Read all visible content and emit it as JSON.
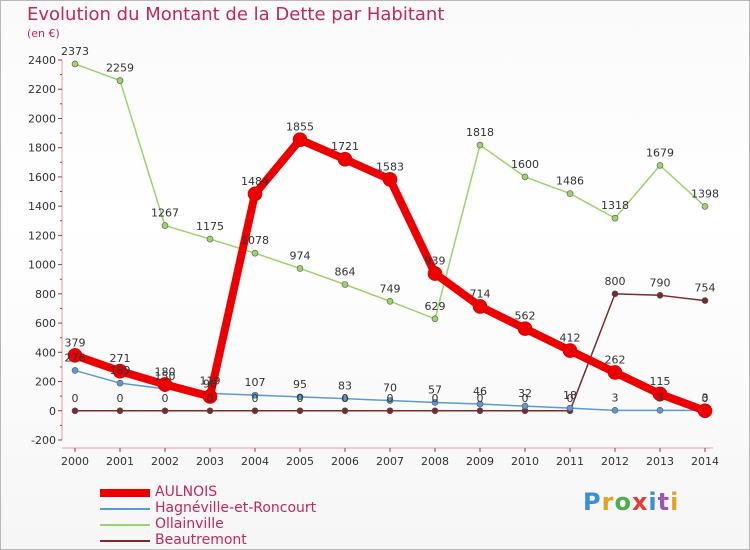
{
  "title": "Evolution du Montant de la Dette par Habitant",
  "unit_label": "(en €)",
  "logo_text": "Proxiti",
  "chart_data": {
    "type": "line",
    "title": "Evolution du Montant de la Dette par Habitant",
    "ylabel": "(en €)",
    "xlabel": "",
    "x": [
      "2000",
      "2001",
      "2002",
      "2003",
      "2004",
      "2005",
      "2006",
      "2007",
      "2008",
      "2009",
      "2010",
      "2011",
      "2012",
      "2013",
      "2014"
    ],
    "ylim": [
      -200,
      2400
    ],
    "y_ticks": [
      -200,
      0,
      200,
      400,
      600,
      800,
      1000,
      1200,
      1400,
      1600,
      1800,
      2000,
      2200,
      2400
    ],
    "grid": false,
    "legend_position": "bottom-left",
    "series": [
      {
        "name": "AULNOIS",
        "color": "#ee0000",
        "width": 8,
        "values": [
          379,
          271,
          180,
          98,
          1484,
          1855,
          1721,
          1583,
          939,
          714,
          562,
          412,
          262,
          115,
          0
        ],
        "labels": [
          "379",
          "271",
          "180",
          "98",
          "1484",
          "1855",
          "1721",
          "1583",
          "939",
          "714",
          "562",
          "412",
          "262",
          "115",
          "0"
        ]
      },
      {
        "name": "Hagnéville-et-Roncourt",
        "color": "#5b9bd5",
        "width": 1.5,
        "values": [
          276,
          189,
          150,
          119,
          107,
          95,
          83,
          70,
          57,
          46,
          32,
          18,
          3,
          3,
          3
        ],
        "labels": [
          "276",
          "189",
          "150",
          "119",
          "107",
          "95",
          "83",
          "70",
          "57",
          "46",
          "32",
          "18",
          "3",
          "3",
          "3"
        ]
      },
      {
        "name": "Ollainville",
        "color": "#9ad46a",
        "width": 1.5,
        "values": [
          2373,
          2259,
          1267,
          1175,
          1078,
          974,
          864,
          749,
          629,
          1818,
          1600,
          1486,
          1318,
          1679,
          1398
        ],
        "labels": [
          "2373",
          "2259",
          "1267",
          "1175",
          "1078",
          "974",
          "864",
          "749",
          "629",
          "1818",
          "1600",
          "1486",
          "1318",
          "1679",
          "1398"
        ]
      },
      {
        "name": "Beautremont",
        "color": "#7b2a2a",
        "width": 1.5,
        "values": [
          0,
          0,
          0,
          0,
          0,
          0,
          0,
          0,
          0,
          0,
          0,
          0,
          800,
          790,
          754
        ],
        "labels": [
          "0",
          "0",
          "0",
          "0",
          "0",
          "0",
          "0",
          "0",
          "0",
          "0",
          "0",
          "0",
          "800",
          "790",
          "754"
        ]
      }
    ]
  }
}
